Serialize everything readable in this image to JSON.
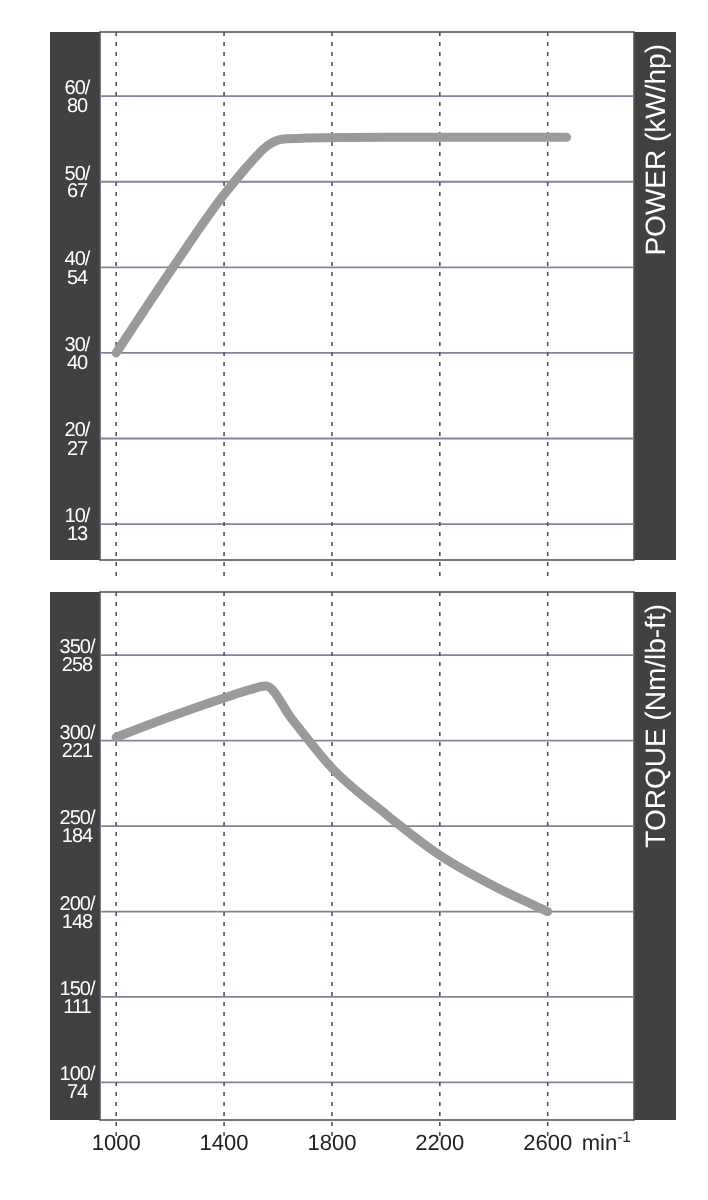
{
  "chart_data": [
    {
      "type": "line",
      "annotations": [
        "POWER (kW/hp)"
      ],
      "xlim": [
        940,
        2920
      ],
      "ylim": [
        5.8,
        67.5
      ],
      "y2lim": [
        7.78,
        90.5
      ],
      "xticks": [
        1000,
        1400,
        1800,
        2200,
        2600
      ],
      "yticks": [
        {
          "value": 10,
          "label": "10/"
        },
        {
          "value": 20,
          "label": "20/"
        },
        {
          "value": 30,
          "label": "30/"
        },
        {
          "value": 40,
          "label": "40/"
        },
        {
          "value": 50,
          "label": "50/"
        },
        {
          "value": 60,
          "label": "60/"
        }
      ],
      "y2ticks": [
        {
          "value": 13.4,
          "label": "13"
        },
        {
          "value": 26.8,
          "label": "27"
        },
        {
          "value": 40.2,
          "label": "40"
        },
        {
          "value": 53.6,
          "label": "54"
        },
        {
          "value": 67.1,
          "label": "67"
        },
        {
          "value": 80.5,
          "label": "80"
        }
      ],
      "tick_labels": "y",
      "grid": true,
      "marker": "none",
      "line_style": "solid",
      "series": [
        {
          "color": "#9a9a9a",
          "x": [
            1000,
            1200,
            1400,
            1500,
            1560,
            1620,
            1700,
            2000,
            2400,
            2670
          ],
          "values": [
            30,
            39.5,
            48.5,
            52.3,
            54.2,
            55,
            55.1,
            55.2,
            55.2,
            55.2
          ]
        }
      ]
    },
    {
      "type": "line",
      "annotations": [
        "TORQUE (Nm/lb-ft)"
      ],
      "xlabel": "min$^{-1}$",
      "xlim": [
        940,
        2920
      ],
      "ylim": [
        78,
        387
      ],
      "y2lim": [
        57.5,
        285.5
      ],
      "xticks": [
        1000,
        1400,
        1800,
        2200,
        2600
      ],
      "yticks": [
        {
          "value": 100,
          "label": "100/"
        },
        {
          "value": 150,
          "label": "150/"
        },
        {
          "value": 200,
          "label": "200/"
        },
        {
          "value": 250,
          "label": "250/"
        },
        {
          "value": 300,
          "label": "300/"
        },
        {
          "value": 350,
          "label": "350/"
        }
      ],
      "y2ticks": [
        {
          "value": 73.8,
          "label": "74"
        },
        {
          "value": 110.6,
          "label": "111"
        },
        {
          "value": 147.5,
          "label": "148"
        },
        {
          "value": 184.4,
          "label": "184"
        },
        {
          "value": 221.3,
          "label": "221"
        },
        {
          "value": 258.2,
          "label": "258"
        }
      ],
      "grid": true,
      "marker": "none",
      "line_style": "solid",
      "series": [
        {
          "color": "#9a9a9a",
          "x": [
            1000,
            1200,
            1400,
            1500,
            1555,
            1650,
            1800,
            2000,
            2200,
            2400,
            2600
          ],
          "values": [
            302,
            314,
            325,
            330,
            332,
            313,
            284,
            257,
            233,
            215,
            200
          ]
        }
      ]
    }
  ]
}
